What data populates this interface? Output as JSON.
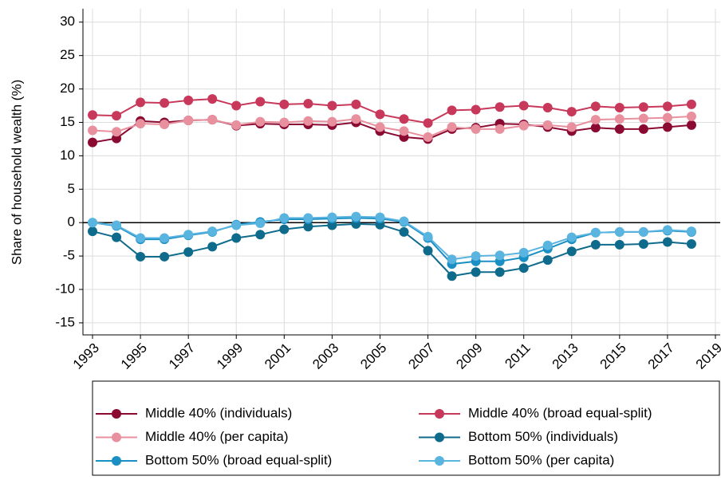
{
  "chart_data": {
    "type": "line",
    "y_label": "Share of household wealth (%)",
    "x": [
      1993,
      1994,
      1995,
      1996,
      1997,
      1998,
      1999,
      2000,
      2001,
      2002,
      2003,
      2004,
      2005,
      2006,
      2007,
      2008,
      2009,
      2010,
      2011,
      2012,
      2013,
      2014,
      2015,
      2016,
      2017,
      2018
    ],
    "xlim": [
      1992.6,
      2019.2
    ],
    "xticks": [
      1993,
      1995,
      1997,
      1999,
      2001,
      2003,
      2005,
      2007,
      2009,
      2011,
      2013,
      2015,
      2017,
      2019
    ],
    "ylim": [
      -16.8,
      32
    ],
    "yticks": [
      -15,
      -10,
      -5,
      0,
      5,
      10,
      15,
      20,
      25,
      30
    ],
    "grid": true,
    "series": [
      {
        "name": "Middle 40% (individuals)",
        "color": "#8b0a32",
        "values": [
          12.0,
          12.6,
          15.2,
          15.0,
          15.3,
          15.4,
          14.5,
          14.8,
          14.7,
          14.7,
          14.6,
          15.0,
          13.7,
          12.8,
          12.5,
          14.0,
          14.2,
          14.8,
          14.7,
          14.3,
          13.7,
          14.2,
          14.0,
          14.0,
          14.3,
          14.6
        ]
      },
      {
        "name": "Middle 40% (broad equal-split)",
        "color": "#c8385a",
        "values": [
          16.1,
          16.0,
          18.0,
          17.9,
          18.3,
          18.5,
          17.5,
          18.1,
          17.7,
          17.8,
          17.5,
          17.7,
          16.2,
          15.5,
          14.9,
          16.8,
          16.9,
          17.3,
          17.5,
          17.2,
          16.6,
          17.4,
          17.2,
          17.3,
          17.4,
          17.7
        ]
      },
      {
        "name": "Middle 40% (per capita)",
        "color": "#e8909e",
        "values": [
          13.8,
          13.6,
          14.8,
          14.7,
          15.3,
          15.4,
          14.6,
          15.1,
          15.0,
          15.2,
          15.1,
          15.5,
          14.3,
          13.7,
          12.8,
          14.3,
          14.0,
          14.0,
          14.5,
          14.6,
          14.3,
          15.4,
          15.5,
          15.6,
          15.7,
          15.9
        ]
      },
      {
        "name": "Bottom 50% (individuals)",
        "color": "#0f6b8c",
        "values": [
          -1.3,
          -2.2,
          -5.1,
          -5.1,
          -4.4,
          -3.6,
          -2.3,
          -1.8,
          -1.0,
          -0.6,
          -0.4,
          -0.2,
          -0.3,
          -1.4,
          -4.2,
          -8.0,
          -7.4,
          -7.4,
          -6.8,
          -5.6,
          -4.3,
          -3.3,
          -3.3,
          -3.2,
          -2.9,
          -3.2
        ]
      },
      {
        "name": "Bottom 50% (broad equal-split)",
        "color": "#1a8fc4",
        "values": [
          0.0,
          -0.5,
          -2.5,
          -2.5,
          -1.9,
          -1.4,
          -0.3,
          0.1,
          0.5,
          0.5,
          0.6,
          0.7,
          0.6,
          0.1,
          -2.3,
          -6.2,
          -5.8,
          -5.8,
          -5.2,
          -3.9,
          -2.5,
          -1.5,
          -1.4,
          -1.4,
          -1.2,
          -1.4
        ]
      },
      {
        "name": "Bottom 50% (per capita)",
        "color": "#5ab4e0",
        "values": [
          0.0,
          -0.4,
          -2.3,
          -2.3,
          -1.8,
          -1.3,
          -0.4,
          -0.1,
          0.7,
          0.7,
          0.8,
          0.9,
          0.8,
          0.2,
          -2.1,
          -5.5,
          -5.0,
          -4.9,
          -4.5,
          -3.4,
          -2.2,
          -1.5,
          -1.4,
          -1.4,
          -1.1,
          -1.3
        ]
      }
    ]
  }
}
